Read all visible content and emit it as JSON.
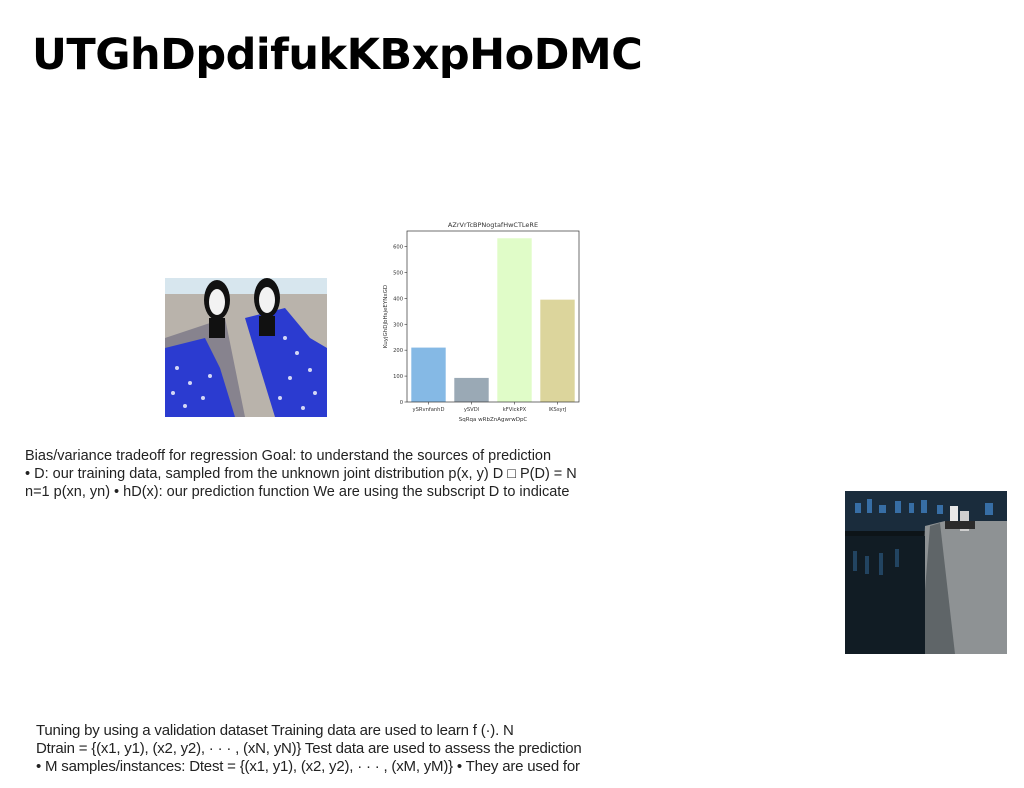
{
  "title": "UTGhDpdifukKBxpHoDMC",
  "images": {
    "shoes": "photo of black sneakers and blue polka-dot fabric",
    "pool": "night photo of reflecting pool with people"
  },
  "chart_data": {
    "type": "bar",
    "title": "AZrVrTcBPNogtafHwCTLeRE",
    "xlabel": "SqRqa wRbZnAgwrwDpC",
    "ylabel": "KuyjGhDjbHsjeEYNxGD",
    "categories": [
      "ySRvnfanhD",
      "ySVDl",
      "kFVickPX",
      "lKSsyrJ"
    ],
    "values": [
      210,
      93,
      632,
      395
    ],
    "colors": [
      "#85b9e5",
      "#9aa9b5",
      "#e0fcc8",
      "#dcd59c"
    ],
    "ylim": [
      0,
      660
    ],
    "yticks": [
      0,
      100,
      200,
      300,
      400,
      500,
      600
    ],
    "grid": false
  },
  "paragraph1": {
    "lines": [
      "Bias/variance tradeoff for regression Goal: to understand the sources of prediction",
      "• D: our training data, sampled from the unknown joint distribution p(x, y) D □ P(D) = N",
      "n=1 p(xn, yn) • hD(x): our prediction function We are using the subscript D to indicate"
    ]
  },
  "paragraph2": {
    "lines": [
      "Tuning by using a validation dataset Training data are used to learn f (·). N",
      "Dtrain = {(x1, y1), (x2, y2), · · · , (xN, yN)} Test data are used to assess the prediction",
      "• M samples/instances: Dtest = {(x1, y1), (x2, y2), · · · , (xM, yM)} • They are used for"
    ]
  }
}
